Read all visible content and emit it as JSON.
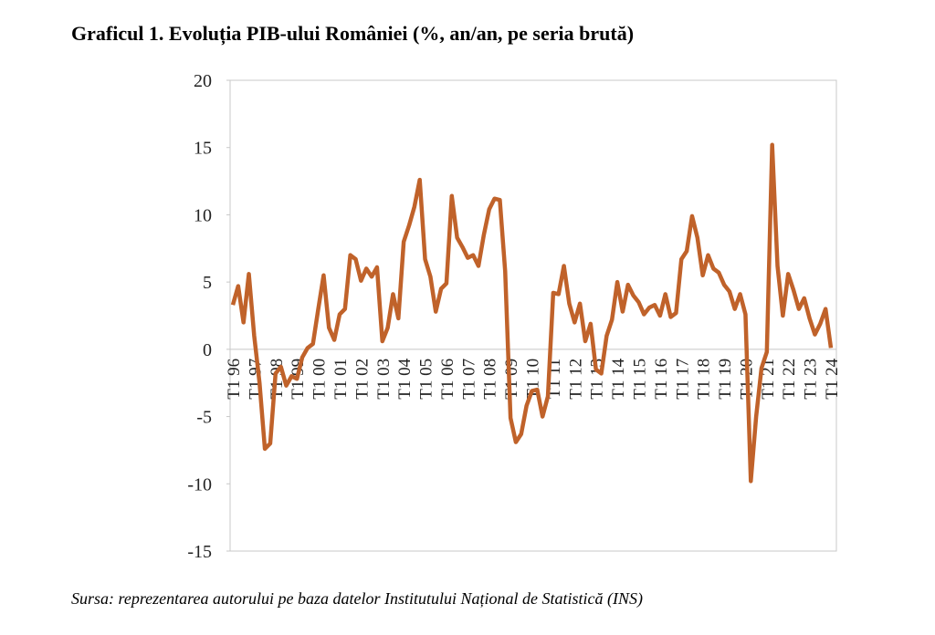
{
  "chart_data": {
    "type": "line",
    "title": "Graficul 1. Evoluția PIB-ului României (%, an/an, pe seria brută)",
    "source": "Sursa: reprezentarea autorului pe baza datelor Institutului Național de Statistică (INS)",
    "categories": [
      "T1 96",
      null,
      null,
      null,
      "T1 97",
      null,
      null,
      null,
      "T1 98",
      null,
      null,
      null,
      "T1 99",
      null,
      null,
      null,
      "T1 00",
      null,
      null,
      null,
      "T1 01",
      null,
      null,
      null,
      "T1 02",
      null,
      null,
      null,
      "T1 03",
      null,
      null,
      null,
      "T1 04",
      null,
      null,
      null,
      "T1 05",
      null,
      null,
      null,
      "T1 06",
      null,
      null,
      null,
      "T1 07",
      null,
      null,
      null,
      "T1 08",
      null,
      null,
      null,
      "T1 09",
      null,
      null,
      null,
      "T1 10",
      null,
      null,
      null,
      "T1 11",
      null,
      null,
      null,
      "T1 12",
      null,
      null,
      null,
      "T1 13",
      null,
      null,
      null,
      "T1 14",
      null,
      null,
      null,
      "T1 15",
      null,
      null,
      null,
      "T1 16",
      null,
      null,
      null,
      "T1 17",
      null,
      null,
      null,
      "T1 18",
      null,
      null,
      null,
      "T1 19",
      null,
      null,
      null,
      "T1 20",
      null,
      null,
      null,
      "T1 21",
      null,
      null,
      null,
      "T1 22",
      null,
      null,
      null,
      "T1 23",
      null,
      null,
      null,
      "T1 24"
    ],
    "values": [
      3.3,
      4.7,
      2.0,
      5.6,
      1.0,
      -2.5,
      -7.4,
      -7.0,
      -1.8,
      -1.3,
      -2.7,
      -2.0,
      -2.2,
      -0.6,
      0.1,
      0.4,
      3.0,
      5.5,
      1.6,
      0.7,
      2.6,
      3.0,
      7.0,
      6.7,
      5.1,
      6.0,
      5.4,
      6.1,
      0.6,
      1.6,
      4.1,
      2.3,
      8.0,
      9.2,
      10.6,
      12.6,
      6.7,
      5.4,
      2.8,
      4.5,
      4.9,
      11.4,
      8.3,
      7.6,
      6.8,
      7.0,
      6.2,
      8.5,
      10.4,
      11.2,
      11.1,
      5.8,
      -5.1,
      -6.9,
      -6.3,
      -4.2,
      -3.1,
      -3.0,
      -5.0,
      -3.5,
      4.2,
      4.1,
      6.2,
      3.4,
      2.0,
      3.4,
      0.6,
      1.9,
      -1.5,
      -1.8,
      1.0,
      2.2,
      5.0,
      2.8,
      4.8,
      4.0,
      3.5,
      2.6,
      3.1,
      3.3,
      2.5,
      4.1,
      2.4,
      2.7,
      6.7,
      7.3,
      9.9,
      8.3,
      5.5,
      7.0,
      6.0,
      5.7,
      4.8,
      4.3,
      3.0,
      4.1,
      2.6,
      -9.8,
      -5.0,
      -1.4,
      -0.2,
      15.2,
      6.2,
      2.5,
      5.6,
      4.4,
      3.0,
      3.8,
      2.3,
      1.1,
      1.9,
      3.0,
      0.1
    ],
    "color": "#c0622a",
    "ylim": [
      -15,
      20
    ],
    "yticks": [
      -15,
      -10,
      -5,
      0,
      5,
      10,
      15,
      20
    ],
    "grid": false
  }
}
